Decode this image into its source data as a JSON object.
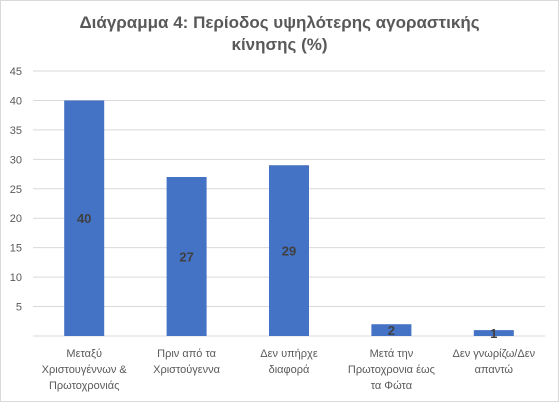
{
  "chart_data": {
    "type": "bar",
    "title_lines": [
      "Διάγραμμα 4: Περίοδος υψηλότερης αγοραστικής",
      "κίνησης (%)"
    ],
    "categories": [
      [
        "Μεταξύ",
        "Χριστουγέννων  &",
        "Πρωτοχρονιάς"
      ],
      [
        "Πριν από τα",
        "Χριστούγεννα"
      ],
      [
        "Δεν υπήρχε",
        "διαφορά"
      ],
      [
        "Μετά την",
        "Πρωτοχρονια    έως",
        "τα Φώτα"
      ],
      [
        "Δεν γνωρίζω/Δεν",
        "απαντώ"
      ]
    ],
    "values": [
      40,
      27,
      29,
      2,
      1
    ],
    "data_labels": [
      "40",
      "27",
      "29",
      "2",
      "1"
    ],
    "yticks": [
      "5",
      "10",
      "15",
      "20",
      "25",
      "30",
      "35",
      "40",
      "45"
    ],
    "ylim": [
      0,
      45
    ],
    "grid": true,
    "colors": {
      "bar": "#4472c4",
      "grid": "#d9d9d9",
      "text": "#595959",
      "label": "#404040"
    }
  }
}
